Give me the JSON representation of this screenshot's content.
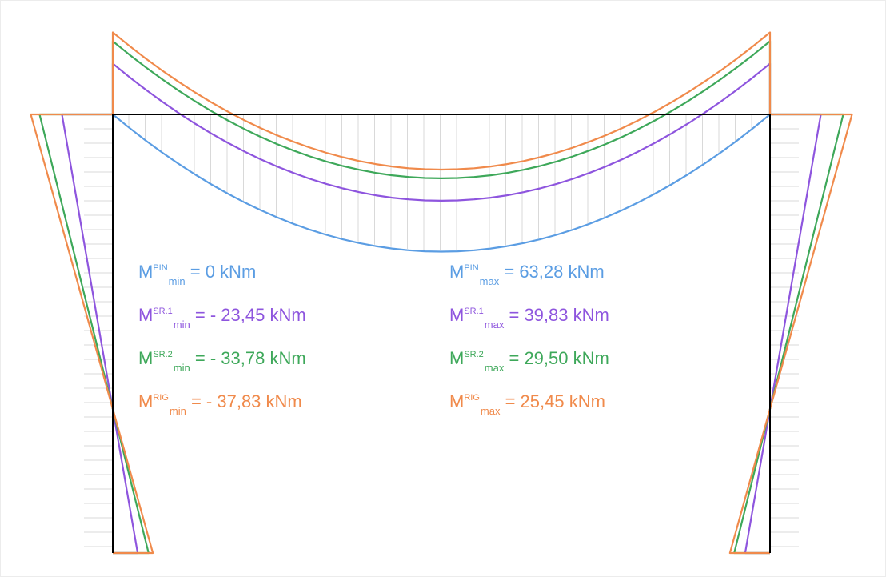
{
  "colors": {
    "PIN": "#5b9de3",
    "SR1": "#8e55de",
    "SR2": "#3ea85a",
    "RIG": "#f08a4b",
    "frame": "#000000",
    "hatch": "#d9d9d9"
  },
  "series": [
    {
      "key": "PIN",
      "sup": "PIN",
      "min": 0,
      "max": 63.28,
      "min_text": "= 0 kNm",
      "max_text": "= 63,28 kNm"
    },
    {
      "key": "SR1",
      "sup": "SR.1",
      "min": -23.45,
      "max": 39.83,
      "min_text": "= - 23,45 kNm",
      "max_text": "= 39,83 kNm"
    },
    {
      "key": "SR2",
      "sup": "SR.2",
      "min": -33.78,
      "max": 29.5,
      "min_text": "= - 33,78 kNm",
      "max_text": "= 29,50 kNm"
    },
    {
      "key": "RIG",
      "sup": "RIG",
      "min": -37.83,
      "max": 25.45,
      "min_text": "= - 37,83 kNm",
      "max_text": "= 25,45 kNm"
    }
  ],
  "labels": {
    "M": "M",
    "min_sub": "min",
    "max_sub": "max"
  }
}
